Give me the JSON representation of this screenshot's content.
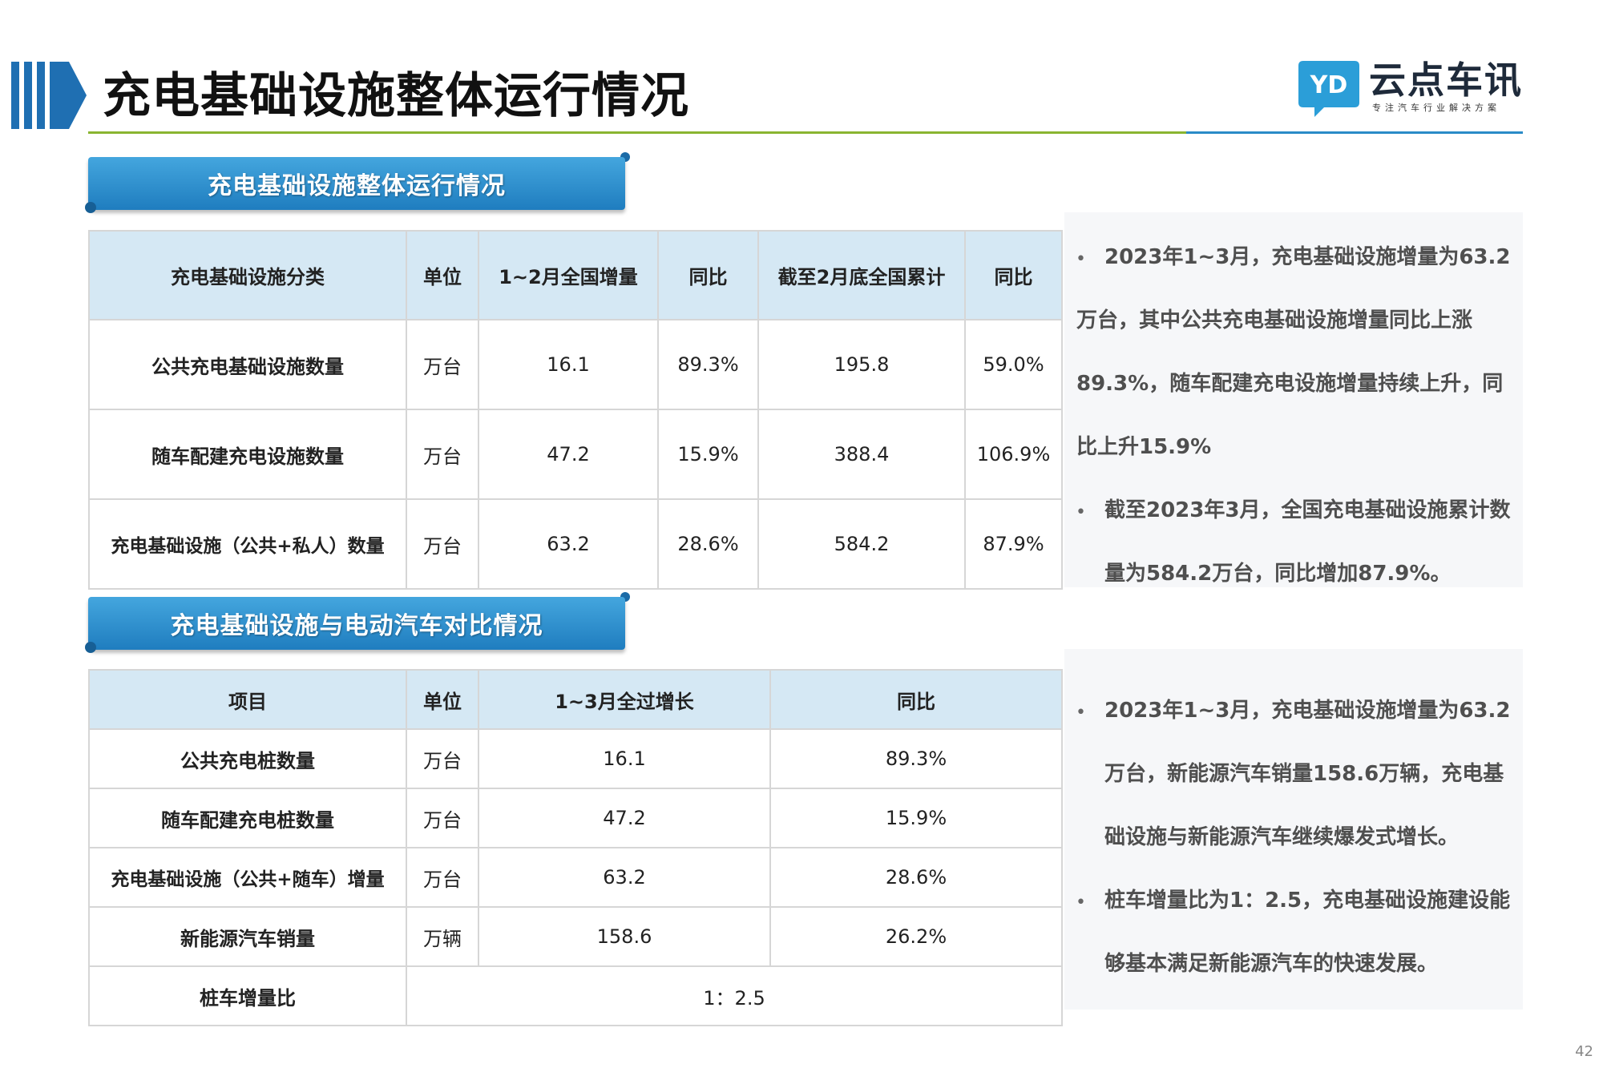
{
  "header": {
    "title": "充电基础设施整体运行情况",
    "logo": {
      "name": "云点车讯",
      "subtitle": "专注汽车行业解决方案",
      "mark_letters": "YD"
    }
  },
  "section1": {
    "heading": "充电基础设施整体运行情况",
    "columns": [
      "充电基础设施分类",
      "单位",
      "1~2月全国增量",
      "同比",
      "截至2月底全国累计",
      "同比"
    ],
    "rows": [
      [
        "公共充电基础设施数量",
        "万台",
        "16.1",
        "89.3%",
        "195.8",
        "59.0%"
      ],
      [
        "随车配建充电设施数量",
        "万台",
        "47.2",
        "15.9%",
        "388.4",
        "106.9%"
      ],
      [
        "充电基础设施（公共+私人）数量",
        "万台",
        "63.2",
        "28.6%",
        "584.2",
        "87.9%"
      ]
    ],
    "notes": [
      [
        "2023年1~3月，充电基础设施增量为63.2",
        "万台，其中公共充电基础设施增量同比上涨",
        "89.3%，随车配建充电设施增量持续上升，同",
        "比上升15.9%"
      ],
      [
        "截至2023年3月，全国充电基础设施累计数",
        "量为584.2万台，同比增加87.9%。"
      ]
    ]
  },
  "section2": {
    "heading": "充电基础设施与电动汽车对比情况",
    "columns": [
      "项目",
      "单位",
      "1~3月全过增长",
      "同比"
    ],
    "rows": [
      [
        "公共充电桩数量",
        "万台",
        "16.1",
        "89.3%"
      ],
      [
        "随车配建充电桩数量",
        "万台",
        "47.2",
        "15.9%"
      ],
      [
        "充电基础设施（公共+随车）增量",
        "万台",
        "63.2",
        "28.6%"
      ],
      [
        "新能源汽车销量",
        "万辆",
        "158.6",
        "26.2%"
      ]
    ],
    "ratio_row": {
      "label": "桩车增量比",
      "value": "1：2.5"
    },
    "notes": [
      [
        "2023年1~3月，充电基础设施增量为63.2",
        "万台，新能源汽车销量158.6万辆，充电基",
        "础设施与新能源汽车继续爆发式增长。"
      ],
      [
        "桩车增量比为1：2.5，充电基础设施建设能",
        "够基本满足新能源汽车的快速发展。"
      ]
    ]
  },
  "page_number": "42",
  "colors": {
    "accent_blue": "#2a8bc7",
    "accent_green": "#8ab531",
    "table_header": "#d5e8f4"
  }
}
